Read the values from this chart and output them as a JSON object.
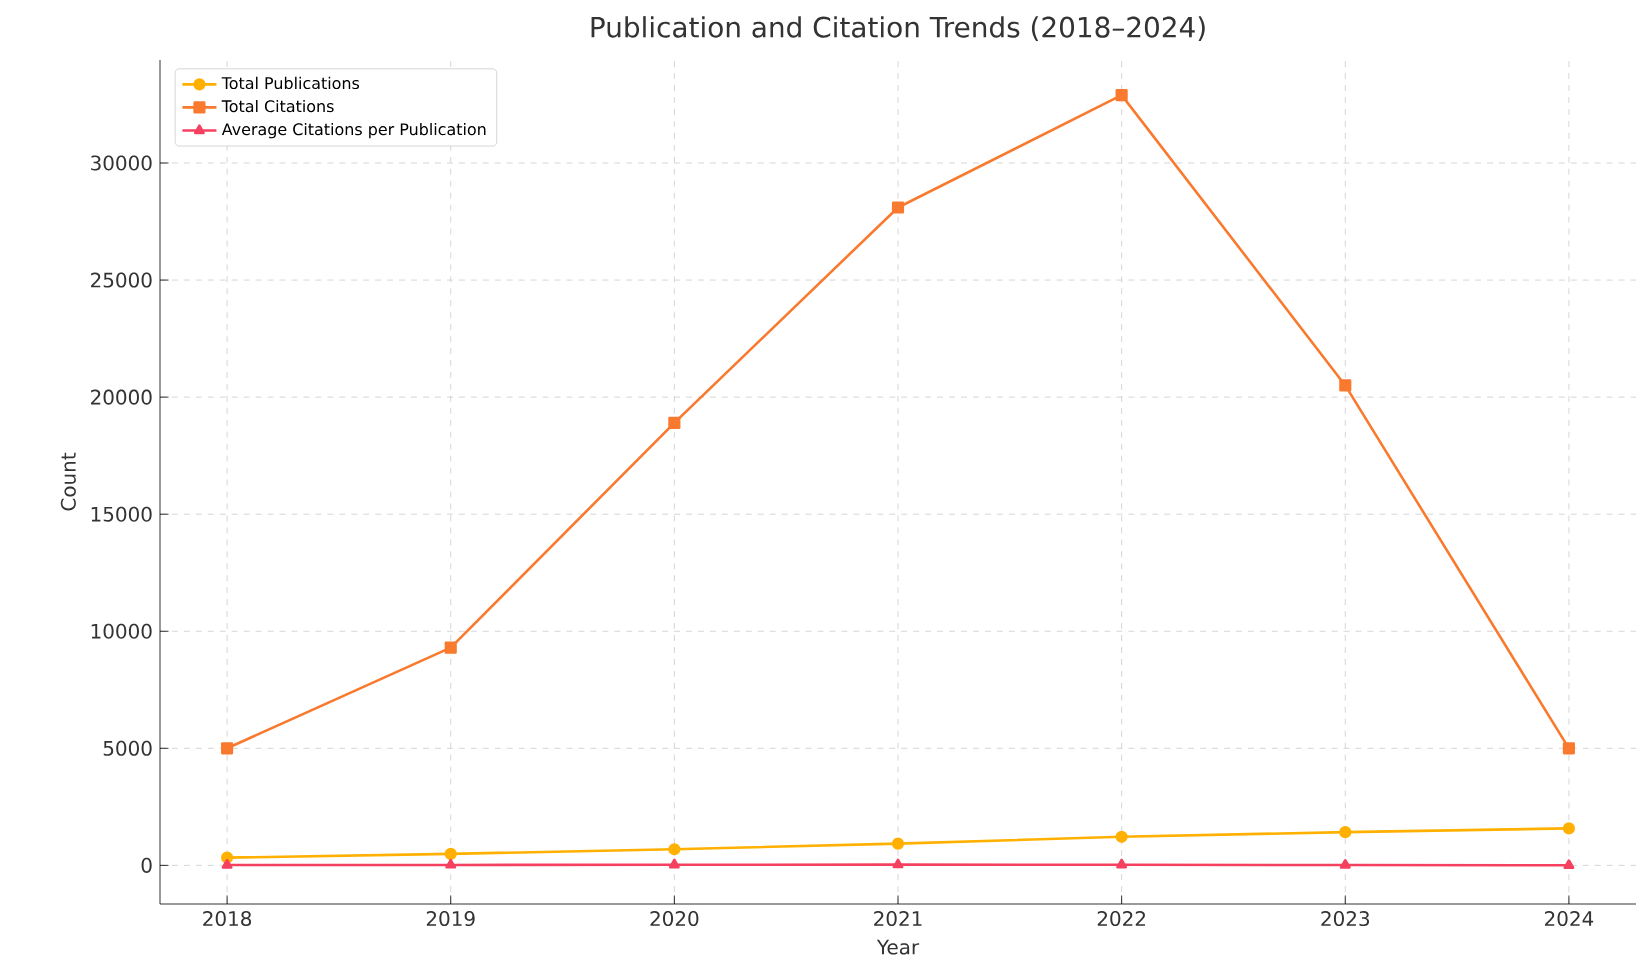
{
  "chart_data": {
    "type": "line",
    "title": "Publication and Citation Trends (2018–2024)",
    "xlabel": "Year",
    "ylabel": "Count",
    "x": [
      2018,
      2019,
      2020,
      2021,
      2022,
      2023,
      2024
    ],
    "series": [
      {
        "name": "Total Publications",
        "color": "#ffb000",
        "marker": "circle",
        "values": [
          330,
          490,
          690,
          930,
          1220,
          1420,
          1580
        ]
      },
      {
        "name": "Total Citations",
        "color": "#f97a2e",
        "marker": "square",
        "values": [
          5000,
          9300,
          18900,
          28100,
          32900,
          20500,
          5000
        ]
      },
      {
        "name": "Average Citations per Publication",
        "color": "#f5405f",
        "marker": "triangle",
        "values": [
          15,
          19,
          27,
          30,
          27,
          14,
          3
        ]
      }
    ],
    "xlim": [
      2017.7,
      2024.3
    ],
    "ylim": [
      -1650,
      34400
    ],
    "xticks": [
      2018,
      2019,
      2020,
      2021,
      2022,
      2023,
      2024
    ],
    "yticks": [
      0,
      5000,
      10000,
      15000,
      20000,
      25000,
      30000
    ],
    "grid": true,
    "legend": "top left",
    "line_style": "solid"
  }
}
